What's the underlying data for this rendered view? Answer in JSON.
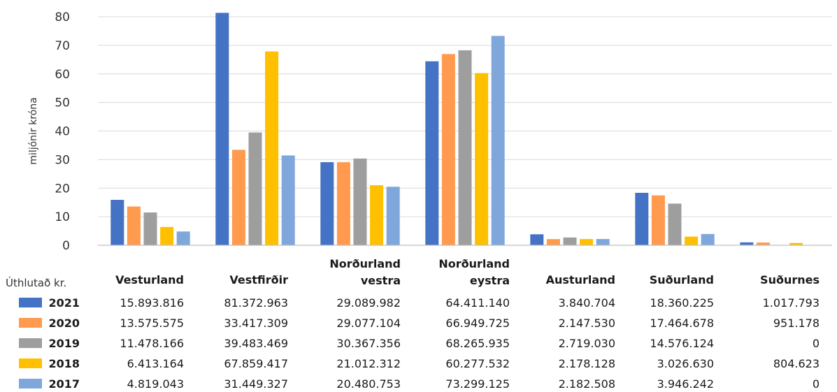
{
  "chart_data": {
    "type": "bar",
    "ylabel": "miljónir króna",
    "ylim": [
      0,
      80
    ],
    "yticks": [
      0,
      10,
      20,
      30,
      40,
      50,
      60,
      70,
      80
    ],
    "grid": true,
    "table_header": "Úthlutað kr.",
    "categories": [
      [
        "Vesturland"
      ],
      [
        "Vestfirðir"
      ],
      [
        "Norðurland",
        "vestra"
      ],
      [
        "Norðurland",
        "eystra"
      ],
      [
        "Austurland"
      ],
      [
        "Suðurland"
      ],
      [
        "Suðurnes"
      ]
    ],
    "series": [
      {
        "name": "2021",
        "color": "#4472C4",
        "values": [
          15.893816,
          81.372963,
          29.089982,
          64.41114,
          3.840704,
          18.360225,
          1.017793
        ],
        "labels": [
          "15.893.816",
          "81.372.963",
          "29.089.982",
          "64.411.140",
          "3.840.704",
          "18.360.225",
          "1.017.793"
        ]
      },
      {
        "name": "2020",
        "color": "#FF9A4E",
        "values": [
          13.575575,
          33.417309,
          29.077104,
          66.949725,
          2.14753,
          17.464678,
          0.951178
        ],
        "labels": [
          "13.575.575",
          "33.417.309",
          "29.077.104",
          "66.949.725",
          "2.147.530",
          "17.464.678",
          "951.178"
        ]
      },
      {
        "name": "2019",
        "color": "#9E9E9E",
        "values": [
          11.478166,
          39.483469,
          30.367356,
          68.265935,
          2.71903,
          14.576124,
          0
        ],
        "labels": [
          "11.478.166",
          "39.483.469",
          "30.367.356",
          "68.265.935",
          "2.719.030",
          "14.576.124",
          "0"
        ]
      },
      {
        "name": "2018",
        "color": "#FFC000",
        "values": [
          6.413164,
          67.859417,
          21.012312,
          60.277532,
          2.178128,
          3.02663,
          0.804623
        ],
        "labels": [
          "6.413.164",
          "67.859.417",
          "21.012.312",
          "60.277.532",
          "2.178.128",
          "3.026.630",
          "804.623"
        ]
      },
      {
        "name": "2017",
        "color": "#7FA7DC",
        "values": [
          4.819043,
          31.449327,
          20.480753,
          73.299125,
          2.182508,
          3.946242,
          0
        ],
        "labels": [
          "4.819.043",
          "31.449.327",
          "20.480.753",
          "73.299.125",
          "2.182.508",
          "3.946.242",
          "0"
        ]
      }
    ]
  }
}
